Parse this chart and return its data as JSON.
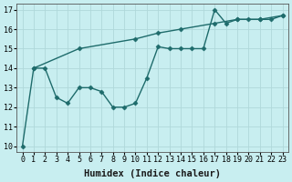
{
  "xlabel": "Humidex (Indice chaleur)",
  "bg_color": "#c8eef0",
  "line_color": "#1e6b6b",
  "grid_color": "#b0d8da",
  "xlim": [
    -0.5,
    23.5
  ],
  "ylim": [
    9.7,
    17.3
  ],
  "xticks": [
    0,
    1,
    2,
    3,
    4,
    5,
    6,
    7,
    8,
    9,
    10,
    11,
    12,
    13,
    14,
    15,
    16,
    17,
    18,
    19,
    20,
    21,
    22,
    23
  ],
  "yticks": [
    10,
    11,
    12,
    13,
    14,
    15,
    16,
    17
  ],
  "line1_x": [
    0,
    1,
    2,
    3,
    4,
    5,
    6,
    7,
    8,
    9,
    10,
    11,
    12,
    13,
    14,
    15,
    16,
    17,
    18,
    19,
    20,
    21,
    22,
    23
  ],
  "line1_y": [
    10,
    14,
    14,
    12.5,
    12.2,
    13,
    13,
    12.8,
    12,
    12,
    12.2,
    13.5,
    15.1,
    15,
    15,
    15,
    15,
    17,
    16.3,
    16.5,
    16.5,
    16.5,
    16.5,
    16.7
  ],
  "line2_x": [
    1,
    5,
    10,
    12,
    14,
    17,
    19,
    21,
    23
  ],
  "line2_y": [
    14,
    15,
    15.5,
    15.8,
    16.0,
    16.3,
    16.5,
    16.5,
    16.7
  ],
  "marker": "D",
  "markersize": 2.5,
  "linewidth": 1.0,
  "xlabel_fontsize": 7.5,
  "tick_fontsize": 6
}
